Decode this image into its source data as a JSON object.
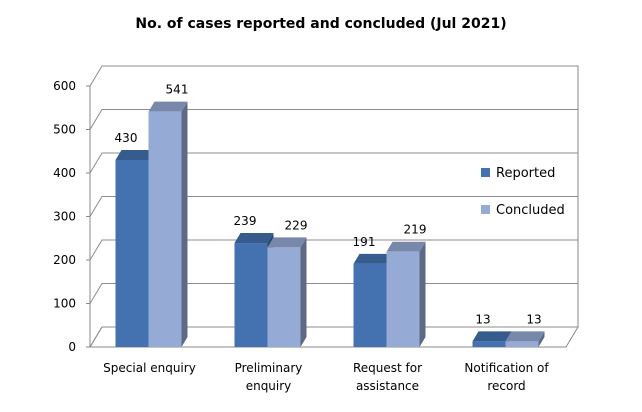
{
  "chart_data": {
    "type": "bar",
    "title": "No. of cases reported and concluded (Jul 2021)",
    "categories": [
      [
        "Special enquiry"
      ],
      [
        "Preliminary",
        "enquiry"
      ],
      [
        "Request for",
        "assistance"
      ],
      [
        "Notification of",
        "record"
      ]
    ],
    "series": [
      {
        "name": "Reported",
        "values": [
          430,
          239,
          191,
          13
        ],
        "color": "#4472b0"
      },
      {
        "name": "Concluded",
        "values": [
          541,
          229,
          219,
          13
        ],
        "color": "#96aad6"
      }
    ],
    "ylim": [
      0,
      600
    ],
    "yticks": [
      0,
      100,
      200,
      300,
      400,
      500,
      600
    ],
    "grid": true,
    "legend": "right",
    "xlabel": "",
    "ylabel": ""
  }
}
